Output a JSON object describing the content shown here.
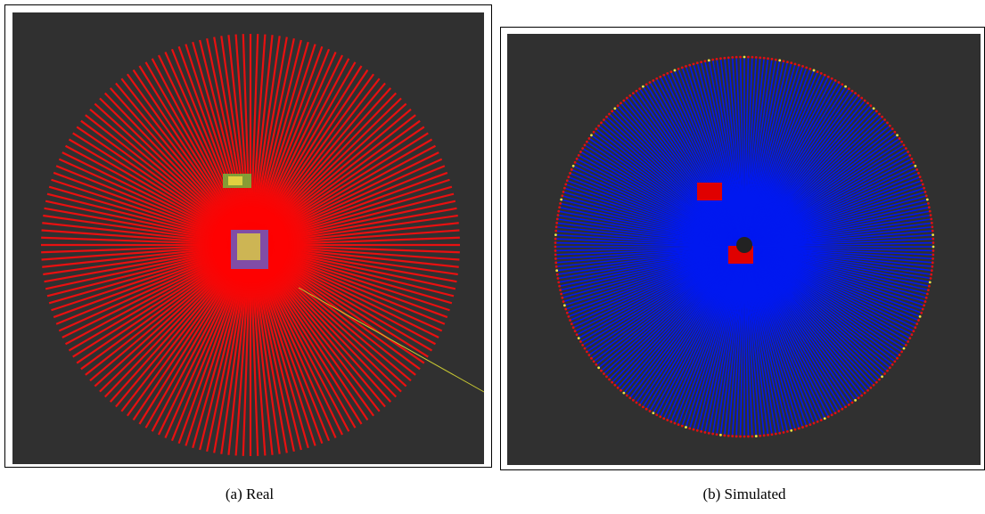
{
  "panels": [
    {
      "caption": "(a) Real"
    },
    {
      "caption": "(b) Simulated"
    }
  ]
}
